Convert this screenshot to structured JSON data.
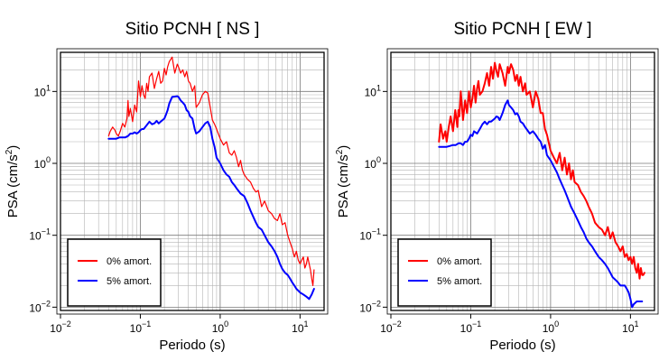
{
  "chart_data": [
    {
      "type": "line",
      "title": "Sitio PCNH [ NS ]",
      "xlabel": "Periodo (s)",
      "ylabel_main": "PSA (cm/s",
      "ylabel_sup": "2",
      "ylabel_tail": ")",
      "x_scale": "log",
      "y_scale": "log",
      "xlim": [
        0.01,
        20
      ],
      "ylim": [
        0.009,
        35
      ],
      "grid": true,
      "legend_position": "bottom-left",
      "x_ticks": [
        {
          "value": 0.01,
          "base": "10",
          "exp": "−2"
        },
        {
          "value": 0.1,
          "base": "10",
          "exp": "−1"
        },
        {
          "value": 1,
          "base": "10",
          "exp": "0"
        },
        {
          "value": 10,
          "base": "10",
          "exp": "1"
        }
      ],
      "y_ticks": [
        {
          "value": 0.01,
          "base": "10",
          "exp": "−2"
        },
        {
          "value": 0.1,
          "base": "10",
          "exp": "−1"
        },
        {
          "value": 1,
          "base": "10",
          "exp": "0"
        },
        {
          "value": 10,
          "base": "10",
          "exp": "1"
        }
      ],
      "series": [
        {
          "name": "0% amort.",
          "color": "#ff0000",
          "width": 1.2,
          "x": [
            0.04,
            0.042,
            0.045,
            0.048,
            0.05,
            0.053,
            0.056,
            0.06,
            0.064,
            0.068,
            0.07,
            0.072,
            0.075,
            0.08,
            0.085,
            0.09,
            0.095,
            0.1,
            0.105,
            0.11,
            0.115,
            0.12,
            0.125,
            0.13,
            0.14,
            0.15,
            0.16,
            0.17,
            0.18,
            0.19,
            0.2,
            0.21,
            0.22,
            0.23,
            0.25,
            0.27,
            0.29,
            0.3,
            0.32,
            0.34,
            0.36,
            0.38,
            0.4,
            0.42,
            0.45,
            0.48,
            0.5,
            0.55,
            0.6,
            0.65,
            0.7,
            0.75,
            0.8,
            0.85,
            0.9,
            1.0,
            1.1,
            1.2,
            1.3,
            1.4,
            1.5,
            1.6,
            1.7,
            1.8,
            1.9,
            2.0,
            2.2,
            2.4,
            2.6,
            2.8,
            3.0,
            3.3,
            3.6,
            4.0,
            4.4,
            4.8,
            5.2,
            5.6,
            6.0,
            6.5,
            7.0,
            7.5,
            8.0,
            8.5,
            9.0,
            9.5,
            10,
            10.5,
            11,
            11.5,
            12,
            12.5,
            13,
            13.5,
            14,
            14.5,
            15
          ],
          "y": [
            2.4,
            2.8,
            3.2,
            2.9,
            2.6,
            2.4,
            2.8,
            3.6,
            3.2,
            4.2,
            7.5,
            4.5,
            5.8,
            3.8,
            6.5,
            5.2,
            14,
            8.5,
            12,
            9,
            8,
            13,
            10,
            16,
            18,
            11,
            15,
            19,
            13,
            14,
            21,
            17,
            22,
            26,
            30,
            18,
            24,
            22,
            18,
            20,
            16,
            19,
            14,
            13,
            10,
            12,
            6,
            7,
            9,
            10,
            9.5,
            6,
            4,
            3.5,
            3,
            2.2,
            1.8,
            2.0,
            1.4,
            1.3,
            1.5,
            1.2,
            0.9,
            1.1,
            0.8,
            0.7,
            0.6,
            0.55,
            0.45,
            0.4,
            0.42,
            0.25,
            0.3,
            0.22,
            0.2,
            0.17,
            0.16,
            0.2,
            0.14,
            0.15,
            0.1,
            0.08,
            0.065,
            0.05,
            0.06,
            0.045,
            0.04,
            0.045,
            0.05,
            0.035,
            0.04,
            0.05,
            0.04,
            0.033,
            0.025,
            0.02,
            0.033
          ]
        },
        {
          "name": "5% amort.",
          "color": "#0000ff",
          "width": 2.0,
          "x": [
            0.04,
            0.045,
            0.05,
            0.055,
            0.06,
            0.065,
            0.07,
            0.075,
            0.08,
            0.085,
            0.09,
            0.095,
            0.1,
            0.105,
            0.11,
            0.12,
            0.13,
            0.14,
            0.15,
            0.16,
            0.17,
            0.18,
            0.19,
            0.2,
            0.21,
            0.22,
            0.23,
            0.25,
            0.27,
            0.29,
            0.3,
            0.32,
            0.34,
            0.36,
            0.38,
            0.4,
            0.42,
            0.45,
            0.48,
            0.5,
            0.55,
            0.6,
            0.65,
            0.7,
            0.75,
            0.8,
            0.85,
            0.9,
            1.0,
            1.1,
            1.2,
            1.3,
            1.4,
            1.5,
            1.6,
            1.8,
            2.0,
            2.2,
            2.4,
            2.6,
            2.8,
            3.0,
            3.3,
            3.6,
            4.0,
            4.4,
            4.8,
            5.2,
            5.6,
            6.0,
            6.5,
            7.0,
            7.5,
            8.0,
            8.5,
            9.0,
            9.5,
            10,
            11,
            12,
            13,
            14,
            15
          ],
          "y": [
            2.2,
            2.2,
            2.2,
            2.3,
            2.3,
            2.3,
            2.4,
            2.6,
            2.6,
            2.7,
            2.6,
            2.7,
            2.9,
            3.0,
            3.0,
            3.4,
            3.8,
            3.5,
            3.6,
            3.9,
            3.6,
            3.8,
            4.0,
            4.2,
            4.8,
            5.5,
            6.8,
            8.4,
            8.5,
            8.6,
            8.4,
            7.5,
            7.0,
            6.5,
            5.5,
            5.2,
            4.5,
            4.2,
            3.0,
            2.6,
            2.8,
            3.2,
            3.6,
            3.8,
            3.2,
            2.2,
            1.7,
            1.2,
            1.0,
            0.8,
            0.7,
            0.65,
            0.55,
            0.5,
            0.45,
            0.38,
            0.35,
            0.28,
            0.22,
            0.18,
            0.15,
            0.13,
            0.12,
            0.1,
            0.08,
            0.07,
            0.06,
            0.05,
            0.04,
            0.034,
            0.03,
            0.028,
            0.025,
            0.022,
            0.02,
            0.018,
            0.017,
            0.016,
            0.015,
            0.014,
            0.013,
            0.015,
            0.018
          ]
        }
      ]
    },
    {
      "type": "line",
      "title": "Sitio PCNH [ EW ]",
      "xlabel": "Periodo (s)",
      "ylabel_main": "PSA (cm/s",
      "ylabel_sup": "2",
      "ylabel_tail": ")",
      "x_scale": "log",
      "y_scale": "log",
      "xlim": [
        0.01,
        20
      ],
      "ylim": [
        0.009,
        35
      ],
      "grid": true,
      "legend_position": "bottom-left",
      "x_ticks": [
        {
          "value": 0.01,
          "base": "10",
          "exp": "−2"
        },
        {
          "value": 0.1,
          "base": "10",
          "exp": "−1"
        },
        {
          "value": 1,
          "base": "10",
          "exp": "0"
        },
        {
          "value": 10,
          "base": "10",
          "exp": "1"
        }
      ],
      "y_ticks": [
        {
          "value": 0.01,
          "base": "10",
          "exp": "−2"
        },
        {
          "value": 0.1,
          "base": "10",
          "exp": "−1"
        },
        {
          "value": 1,
          "base": "10",
          "exp": "0"
        },
        {
          "value": 10,
          "base": "10",
          "exp": "1"
        }
      ],
      "series": [
        {
          "name": "0% amort.",
          "color": "#ff0000",
          "width": 2.0,
          "x": [
            0.04,
            0.042,
            0.045,
            0.048,
            0.05,
            0.053,
            0.056,
            0.06,
            0.064,
            0.068,
            0.07,
            0.072,
            0.075,
            0.08,
            0.085,
            0.09,
            0.095,
            0.1,
            0.105,
            0.11,
            0.115,
            0.12,
            0.125,
            0.13,
            0.14,
            0.15,
            0.16,
            0.17,
            0.18,
            0.19,
            0.2,
            0.21,
            0.22,
            0.23,
            0.25,
            0.27,
            0.29,
            0.3,
            0.32,
            0.34,
            0.36,
            0.38,
            0.4,
            0.42,
            0.45,
            0.48,
            0.5,
            0.55,
            0.6,
            0.65,
            0.7,
            0.75,
            0.8,
            0.85,
            0.9,
            1.0,
            1.1,
            1.2,
            1.3,
            1.4,
            1.5,
            1.6,
            1.7,
            1.8,
            1.9,
            2.0,
            2.2,
            2.4,
            2.6,
            2.8,
            3.0,
            3.3,
            3.6,
            4.0,
            4.4,
            4.8,
            5.2,
            5.6,
            6.0,
            6.5,
            7.0,
            7.5,
            8.0,
            8.5,
            9.0,
            9.5,
            10,
            10.5,
            11,
            11.5,
            12,
            12.5,
            13,
            13.5,
            14,
            14.5,
            15
          ],
          "y": [
            2.0,
            3.5,
            2.2,
            2.8,
            2.0,
            3.2,
            4.5,
            2.8,
            5.5,
            3.2,
            5.5,
            4.5,
            10,
            4.0,
            7.5,
            5.0,
            10,
            6.0,
            8.0,
            12,
            7.0,
            11,
            14,
            9,
            10,
            13,
            18,
            12,
            22,
            15,
            25,
            19,
            16,
            24,
            18,
            12,
            22,
            18,
            24,
            20,
            14,
            17,
            12,
            16,
            10,
            13,
            9,
            10,
            6,
            10,
            8,
            5,
            5,
            3,
            2.5,
            1.5,
            1.2,
            1.0,
            1.4,
            0.8,
            1.2,
            0.7,
            1.0,
            0.6,
            0.8,
            0.55,
            0.5,
            0.4,
            0.35,
            0.3,
            0.25,
            0.2,
            0.15,
            0.13,
            0.12,
            0.1,
            0.13,
            0.09,
            0.11,
            0.08,
            0.07,
            0.06,
            0.07,
            0.05,
            0.055,
            0.045,
            0.05,
            0.04,
            0.05,
            0.035,
            0.03,
            0.04,
            0.025,
            0.035,
            0.028,
            0.028,
            0.03
          ]
        },
        {
          "name": "5% amort.",
          "color": "#0000ff",
          "width": 2.0,
          "x": [
            0.04,
            0.045,
            0.05,
            0.055,
            0.06,
            0.065,
            0.07,
            0.075,
            0.08,
            0.085,
            0.09,
            0.095,
            0.1,
            0.105,
            0.11,
            0.12,
            0.13,
            0.14,
            0.15,
            0.16,
            0.17,
            0.18,
            0.19,
            0.2,
            0.21,
            0.22,
            0.23,
            0.25,
            0.27,
            0.29,
            0.3,
            0.32,
            0.34,
            0.36,
            0.38,
            0.4,
            0.42,
            0.45,
            0.48,
            0.5,
            0.55,
            0.6,
            0.65,
            0.7,
            0.75,
            0.8,
            0.85,
            0.9,
            1.0,
            1.1,
            1.2,
            1.3,
            1.4,
            1.5,
            1.6,
            1.8,
            2.0,
            2.2,
            2.4,
            2.6,
            2.8,
            3.0,
            3.3,
            3.6,
            4.0,
            4.4,
            4.8,
            5.2,
            5.6,
            6.0,
            6.5,
            7.0,
            7.5,
            8.0,
            8.5,
            9.0,
            9.5,
            10,
            10.5,
            11,
            12,
            13,
            14
          ],
          "y": [
            1.7,
            1.7,
            1.7,
            1.75,
            1.8,
            1.8,
            1.9,
            1.9,
            1.8,
            2.0,
            2.0,
            2.2,
            2.5,
            2.4,
            2.8,
            2.6,
            3.0,
            3.5,
            3.8,
            3.5,
            3.8,
            3.8,
            4.0,
            4.2,
            4.5,
            4.4,
            4.0,
            5.0,
            6.5,
            7.5,
            6.5,
            6.0,
            5.5,
            4.8,
            5.0,
            4.5,
            3.8,
            3.6,
            3.2,
            3.0,
            2.6,
            2.8,
            2.5,
            2.2,
            2.0,
            1.6,
            1.8,
            1.3,
            1.1,
            0.9,
            0.75,
            0.6,
            0.5,
            0.42,
            0.35,
            0.25,
            0.2,
            0.16,
            0.13,
            0.11,
            0.09,
            0.08,
            0.07,
            0.06,
            0.05,
            0.045,
            0.04,
            0.035,
            0.03,
            0.026,
            0.024,
            0.022,
            0.02,
            0.02,
            0.02,
            0.018,
            0.016,
            0.013,
            0.01,
            0.011,
            0.012,
            0.012,
            0.012
          ]
        }
      ]
    }
  ]
}
